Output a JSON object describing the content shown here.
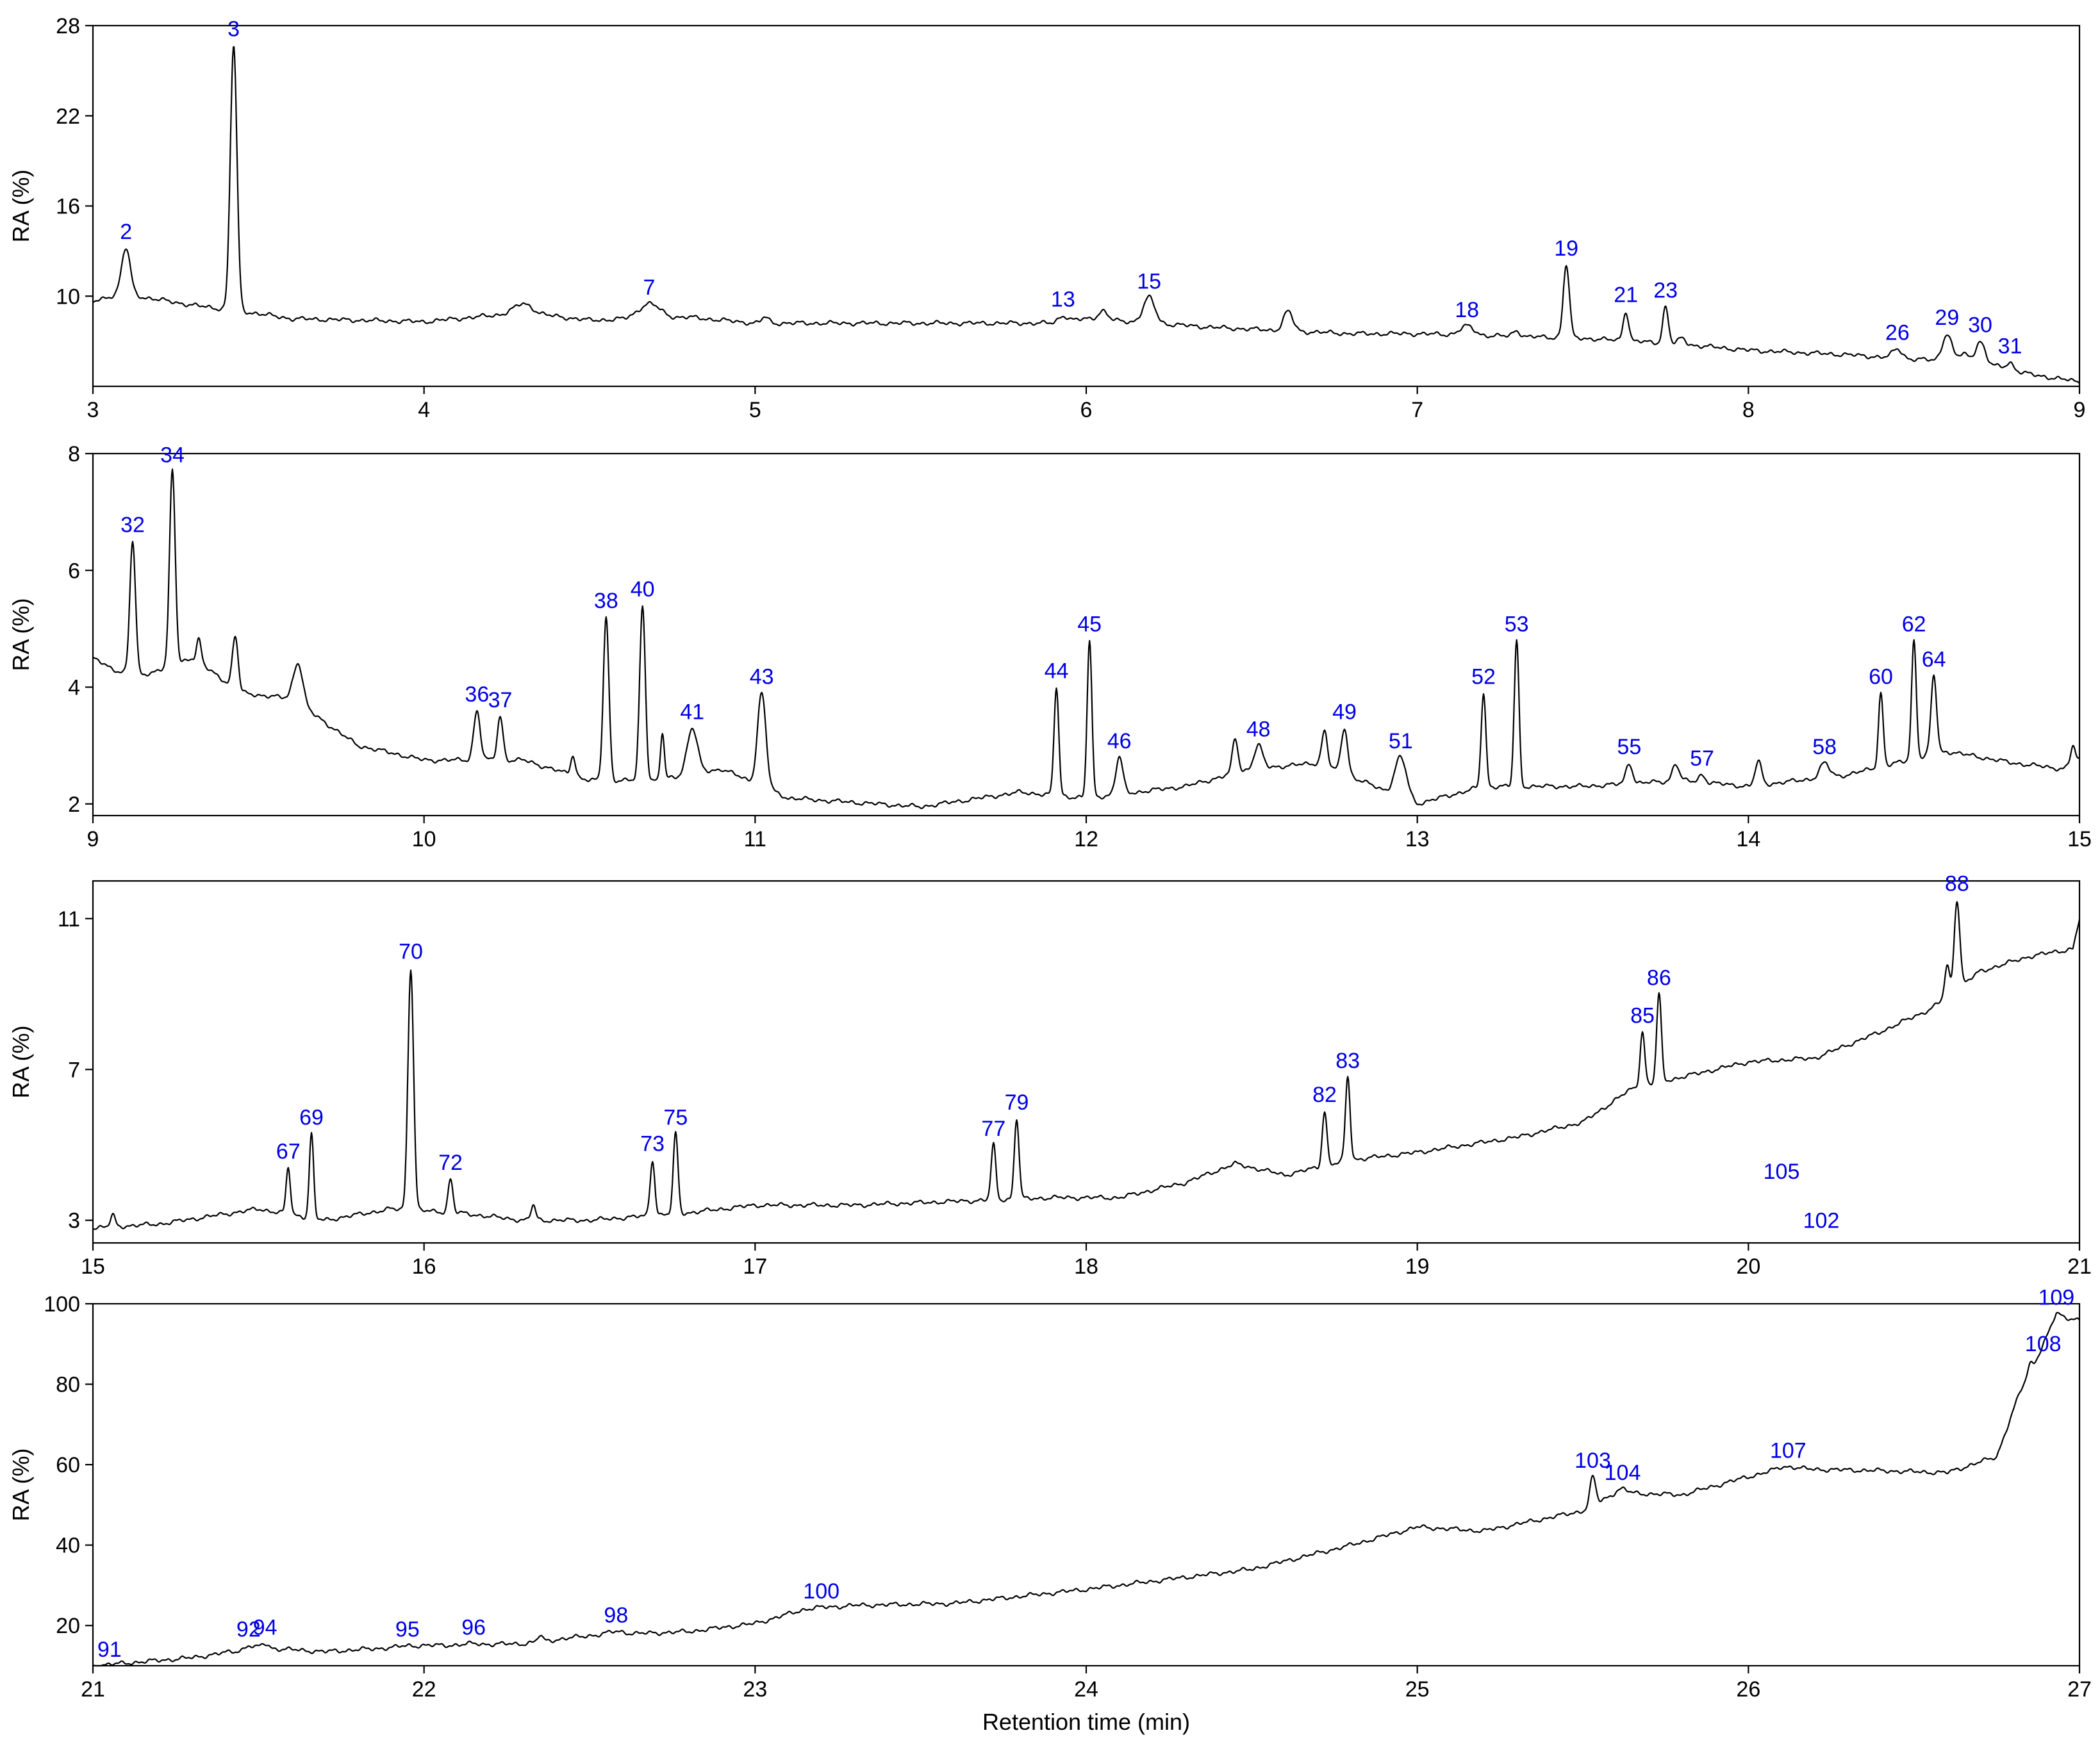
{
  "chart_data": [
    {
      "type": "line",
      "xlim": [
        3,
        9
      ],
      "ylim": [
        4,
        28
      ],
      "xticks": [
        "3",
        "4",
        "5",
        "6",
        "7",
        "8",
        "9"
      ],
      "yticks": [
        "10",
        "16",
        "22",
        "28"
      ],
      "ylabel": "RA (%)",
      "xlabel": "",
      "grid": false,
      "baseline": [
        [
          3.0,
          9.6
        ],
        [
          3.08,
          10.2
        ],
        [
          3.3,
          9.4
        ],
        [
          3.45,
          9.0
        ],
        [
          3.6,
          8.5
        ],
        [
          4.0,
          8.3
        ],
        [
          4.3,
          8.9
        ],
        [
          4.5,
          8.4
        ],
        [
          4.8,
          8.6
        ],
        [
          5.0,
          8.2
        ],
        [
          5.5,
          8.2
        ],
        [
          5.9,
          8.2
        ],
        [
          6.0,
          8.5
        ],
        [
          6.4,
          7.9
        ],
        [
          6.8,
          7.5
        ],
        [
          7.0,
          7.5
        ],
        [
          7.5,
          7.2
        ],
        [
          7.8,
          6.8
        ],
        [
          8.0,
          6.4
        ],
        [
          8.3,
          6.1
        ],
        [
          8.5,
          5.8
        ],
        [
          8.7,
          5.6
        ],
        [
          8.85,
          4.8
        ],
        [
          9.0,
          4.3
        ]
      ],
      "peaks": [
        {
          "label": "2",
          "x": 3.1,
          "y": 13.2,
          "w": 0.018
        },
        {
          "label": "3",
          "x": 3.425,
          "y": 26.7,
          "w": 0.014
        },
        {
          "label": "7",
          "x": 4.68,
          "y": 9.5,
          "w": 0.045
        },
        {
          "label": "13",
          "x": 5.93,
          "y": 8.7,
          "w": 0.02
        },
        {
          "label": "15",
          "x": 6.19,
          "y": 9.9,
          "w": 0.025
        },
        {
          "label": "18",
          "x": 7.15,
          "y": 8.0,
          "w": 0.03
        },
        {
          "label": "19",
          "x": 7.45,
          "y": 12.1,
          "w": 0.013
        },
        {
          "label": "21",
          "x": 7.63,
          "y": 9.0,
          "w": 0.012
        },
        {
          "label": "23",
          "x": 7.75,
          "y": 9.3,
          "w": 0.012
        },
        {
          "label": "26",
          "x": 8.45,
          "y": 6.5,
          "w": 0.02
        },
        {
          "label": "29",
          "x": 8.6,
          "y": 7.5,
          "w": 0.02
        },
        {
          "label": "30",
          "x": 8.7,
          "y": 7.0,
          "w": 0.02
        },
        {
          "label": "31",
          "x": 8.79,
          "y": 5.6,
          "w": 0.015
        }
      ],
      "minor_peaks": [
        [
          4.3,
          0.6,
          0.04
        ],
        [
          5.03,
          0.4,
          0.015
        ],
        [
          6.05,
          0.6,
          0.02
        ],
        [
          6.61,
          1.3,
          0.02
        ],
        [
          7.3,
          0.4,
          0.015
        ],
        [
          7.8,
          0.4,
          0.015
        ],
        [
          8.65,
          0.5,
          0.02
        ]
      ]
    },
    {
      "type": "line",
      "xlim": [
        9,
        15
      ],
      "ylim": [
        1.8,
        8
      ],
      "xticks": [
        "9",
        "10",
        "11",
        "12",
        "13",
        "14",
        "15"
      ],
      "yticks": [
        "2",
        "4",
        "6",
        "8"
      ],
      "ylabel": "RA (%)",
      "xlabel": "",
      "grid": false,
      "baseline": [
        [
          9.0,
          4.5
        ],
        [
          9.06,
          4.3
        ],
        [
          9.15,
          4.2
        ],
        [
          9.3,
          4.5
        ],
        [
          9.45,
          3.9
        ],
        [
          9.6,
          3.8
        ],
        [
          9.8,
          3.0
        ],
        [
          10.0,
          2.75
        ],
        [
          10.3,
          2.75
        ],
        [
          10.5,
          2.4
        ],
        [
          10.7,
          2.4
        ],
        [
          10.9,
          2.6
        ],
        [
          11.1,
          2.1
        ],
        [
          11.5,
          1.95
        ],
        [
          11.8,
          2.2
        ],
        [
          12.0,
          2.1
        ],
        [
          12.3,
          2.3
        ],
        [
          12.5,
          2.6
        ],
        [
          12.7,
          2.7
        ],
        [
          13.0,
          2.0
        ],
        [
          13.2,
          2.3
        ],
        [
          13.5,
          2.3
        ],
        [
          13.8,
          2.4
        ],
        [
          14.0,
          2.3
        ],
        [
          14.3,
          2.5
        ],
        [
          14.6,
          2.9
        ],
        [
          14.8,
          2.7
        ],
        [
          14.95,
          2.6
        ],
        [
          15.0,
          2.75
        ]
      ],
      "peaks": [
        {
          "label": "32",
          "x": 9.12,
          "y": 6.5,
          "w": 0.012
        },
        {
          "label": "34",
          "x": 9.24,
          "y": 7.7,
          "w": 0.012
        },
        {
          "label": "36",
          "x": 10.16,
          "y": 3.6,
          "w": 0.014
        },
        {
          "label": "37",
          "x": 10.23,
          "y": 3.5,
          "w": 0.012
        },
        {
          "label": "38",
          "x": 10.55,
          "y": 5.2,
          "w": 0.012
        },
        {
          "label": "40",
          "x": 10.66,
          "y": 5.4,
          "w": 0.012
        },
        {
          "label": "41",
          "x": 10.81,
          "y": 3.3,
          "w": 0.022
        },
        {
          "label": "43",
          "x": 11.02,
          "y": 3.9,
          "w": 0.018
        },
        {
          "label": "44",
          "x": 11.91,
          "y": 4.0,
          "w": 0.01
        },
        {
          "label": "45",
          "x": 12.01,
          "y": 4.8,
          "w": 0.01
        },
        {
          "label": "46",
          "x": 12.1,
          "y": 2.8,
          "w": 0.015
        },
        {
          "label": "48",
          "x": 12.52,
          "y": 3.0,
          "w": 0.018
        },
        {
          "label": "49",
          "x": 12.78,
          "y": 3.3,
          "w": 0.014
        },
        {
          "label": "51",
          "x": 12.95,
          "y": 2.8,
          "w": 0.025
        },
        {
          "label": "52",
          "x": 13.2,
          "y": 3.9,
          "w": 0.01
        },
        {
          "label": "53",
          "x": 13.3,
          "y": 4.8,
          "w": 0.01
        },
        {
          "label": "55",
          "x": 13.64,
          "y": 2.7,
          "w": 0.014
        },
        {
          "label": "57",
          "x": 13.86,
          "y": 2.5,
          "w": 0.014
        },
        {
          "label": "58",
          "x": 14.23,
          "y": 2.7,
          "w": 0.02
        },
        {
          "label": "60",
          "x": 14.4,
          "y": 3.9,
          "w": 0.01
        },
        {
          "label": "62",
          "x": 14.5,
          "y": 4.8,
          "w": 0.01
        },
        {
          "label": "64",
          "x": 14.56,
          "y": 4.2,
          "w": 0.012
        }
      ],
      "minor_peaks": [
        [
          9.32,
          0.4,
          0.01
        ],
        [
          9.43,
          0.9,
          0.012
        ],
        [
          9.62,
          0.7,
          0.02
        ],
        [
          10.45,
          0.35,
          0.01
        ],
        [
          10.72,
          0.8,
          0.008
        ],
        [
          12.45,
          0.6,
          0.012
        ],
        [
          12.72,
          0.6,
          0.012
        ],
        [
          13.78,
          0.3,
          0.014
        ],
        [
          14.03,
          0.4,
          0.014
        ],
        [
          14.98,
          0.3,
          0.01
        ]
      ]
    },
    {
      "type": "line",
      "xlim": [
        15,
        21
      ],
      "ylim": [
        2.4,
        12
      ],
      "xticks": [
        "15",
        "16",
        "17",
        "18",
        "19",
        "20",
        "21"
      ],
      "yticks": [
        "3",
        "7",
        "11"
      ],
      "ylabel": "RA (%)",
      "xlabel": "",
      "grid": false,
      "baseline": [
        [
          15.0,
          2.8
        ],
        [
          15.2,
          2.9
        ],
        [
          15.5,
          3.3
        ],
        [
          15.7,
          3.0
        ],
        [
          15.9,
          3.3
        ],
        [
          16.1,
          3.2
        ],
        [
          16.3,
          3.0
        ],
        [
          16.5,
          3.0
        ],
        [
          16.8,
          3.2
        ],
        [
          17.0,
          3.4
        ],
        [
          17.3,
          3.4
        ],
        [
          17.6,
          3.5
        ],
        [
          17.9,
          3.6
        ],
        [
          18.1,
          3.6
        ],
        [
          18.3,
          4.0
        ],
        [
          18.45,
          4.5
        ],
        [
          18.6,
          4.2
        ],
        [
          18.8,
          4.6
        ],
        [
          19.0,
          4.8
        ],
        [
          19.3,
          5.2
        ],
        [
          19.5,
          5.6
        ],
        [
          19.65,
          6.5
        ],
        [
          19.8,
          6.8
        ],
        [
          20.0,
          7.2
        ],
        [
          20.2,
          7.3
        ],
        [
          20.4,
          8.0
        ],
        [
          20.55,
          8.6
        ],
        [
          20.7,
          9.6
        ],
        [
          20.85,
          10.0
        ],
        [
          20.98,
          10.2
        ],
        [
          21.0,
          11.0
        ]
      ],
      "peaks": [
        {
          "label": "67",
          "x": 15.59,
          "y": 4.4,
          "w": 0.009
        },
        {
          "label": "69",
          "x": 15.66,
          "y": 5.3,
          "w": 0.009
        },
        {
          "label": "70",
          "x": 15.96,
          "y": 9.7,
          "w": 0.012
        },
        {
          "label": "72",
          "x": 16.08,
          "y": 4.1,
          "w": 0.01
        },
        {
          "label": "73",
          "x": 16.69,
          "y": 4.6,
          "w": 0.01
        },
        {
          "label": "75",
          "x": 16.76,
          "y": 5.3,
          "w": 0.01
        },
        {
          "label": "77",
          "x": 17.72,
          "y": 5.0,
          "w": 0.01
        },
        {
          "label": "79",
          "x": 17.79,
          "y": 5.7,
          "w": 0.01
        },
        {
          "label": "82",
          "x": 18.72,
          "y": 5.9,
          "w": 0.01
        },
        {
          "label": "83",
          "x": 18.79,
          "y": 6.8,
          "w": 0.01
        },
        {
          "label": "85",
          "x": 19.68,
          "y": 8.0,
          "w": 0.01
        },
        {
          "label": "86",
          "x": 19.73,
          "y": 9.0,
          "w": 0.01
        },
        {
          "label": "88",
          "x": 20.63,
          "y": 11.5,
          "w": 0.012
        }
      ],
      "minor_peaks": [
        [
          15.06,
          0.3,
          0.01
        ],
        [
          16.33,
          0.4,
          0.01
        ],
        [
          20.6,
          0.8,
          0.01
        ]
      ],
      "floating_labels": [
        {
          "label": "105",
          "x": 20.1,
          "y": 4.1
        },
        {
          "label": "102",
          "x": 20.22,
          "y": 2.8
        }
      ]
    },
    {
      "type": "line",
      "xlim": [
        21,
        27
      ],
      "ylim": [
        10,
        100
      ],
      "xticks": [
        "21",
        "22",
        "23",
        "24",
        "25",
        "26",
        "27"
      ],
      "yticks": [
        "20",
        "40",
        "60",
        "80",
        "100"
      ],
      "ylabel": "RA (%)",
      "xlabel": "Retention time (min)",
      "grid": false,
      "baseline": [
        [
          21.0,
          10.0
        ],
        [
          21.3,
          12.0
        ],
        [
          21.5,
          14.5
        ],
        [
          21.7,
          13.5
        ],
        [
          21.9,
          14.5
        ],
        [
          22.0,
          15.0
        ],
        [
          22.3,
          15.5
        ],
        [
          22.5,
          17.5
        ],
        [
          22.8,
          18.5
        ],
        [
          23.0,
          20.5
        ],
        [
          23.15,
          24.0
        ],
        [
          23.3,
          25.0
        ],
        [
          23.6,
          25.5
        ],
        [
          24.0,
          29.0
        ],
        [
          24.5,
          34.0
        ],
        [
          24.8,
          40.0
        ],
        [
          25.0,
          44.5
        ],
        [
          25.2,
          43.5
        ],
        [
          25.5,
          48.5
        ],
        [
          25.6,
          53.0
        ],
        [
          25.8,
          52.5
        ],
        [
          26.0,
          57.0
        ],
        [
          26.1,
          59.0
        ],
        [
          26.4,
          58.5
        ],
        [
          26.6,
          58.0
        ],
        [
          26.75,
          62.0
        ],
        [
          26.82,
          78.0
        ],
        [
          26.88,
          88.0
        ],
        [
          26.93,
          97.0
        ],
        [
          27.0,
          96.0
        ]
      ],
      "peaks": [
        {
          "label": "91",
          "x": 21.05,
          "y": 10.0,
          "w": 0.01
        },
        {
          "label": "92",
          "x": 21.47,
          "y": 15.0,
          "w": 0.015
        },
        {
          "label": "94",
          "x": 21.52,
          "y": 15.5,
          "w": 0.015
        },
        {
          "label": "95",
          "x": 21.95,
          "y": 15.0,
          "w": 0.03
        },
        {
          "label": "96",
          "x": 22.15,
          "y": 15.5,
          "w": 0.03
        },
        {
          "label": "98",
          "x": 22.58,
          "y": 18.5,
          "w": 0.04
        },
        {
          "label": "100",
          "x": 23.2,
          "y": 24.5,
          "w": 0.05
        },
        {
          "label": "103",
          "x": 25.53,
          "y": 57.0,
          "w": 0.012
        },
        {
          "label": "104",
          "x": 25.62,
          "y": 54.0,
          "w": 0.02
        },
        {
          "label": "107",
          "x": 26.12,
          "y": 59.5,
          "w": 0.04
        },
        {
          "label": "108",
          "x": 26.89,
          "y": 86.0,
          "w": 0.01
        },
        {
          "label": "109",
          "x": 26.93,
          "y": 97.5,
          "w": 0.02
        }
      ],
      "minor_peaks": [
        [
          22.35,
          1.5,
          0.01
        ],
        [
          26.85,
          2.0,
          0.01
        ]
      ]
    }
  ]
}
